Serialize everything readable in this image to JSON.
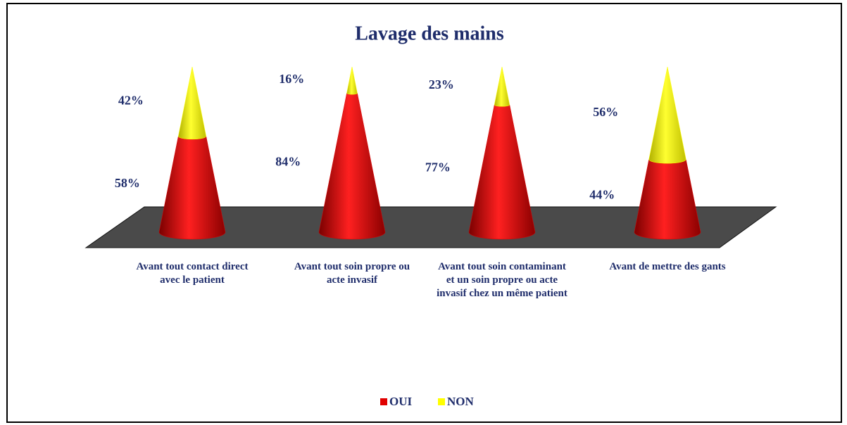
{
  "chart_data": {
    "type": "cone",
    "title": "Lavage des mains",
    "categories": [
      "Avant tout contact direct avec le patient",
      "Avant tout soin propre ou acte invasif",
      "Avant tout soin contaminant et un soin propre ou acte invasif chez un même patient",
      "Avant de mettre des gants"
    ],
    "series": [
      {
        "name": "OUI",
        "color": "#e00000",
        "values": [
          58,
          84,
          77,
          44
        ],
        "value_labels": [
          "58%",
          "84%",
          "77%",
          "44%"
        ]
      },
      {
        "name": "NON",
        "color": "#ffff00",
        "values": [
          42,
          16,
          23,
          56
        ],
        "value_labels": [
          "42%",
          "16%",
          "23%",
          "56%"
        ]
      }
    ],
    "legend": "bottom"
  }
}
